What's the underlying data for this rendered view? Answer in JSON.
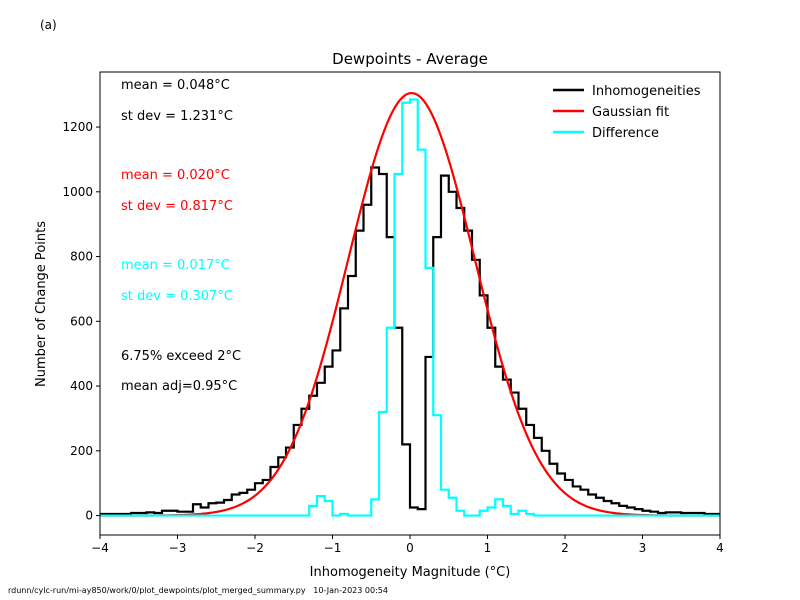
{
  "panel_label": "(a)",
  "footer_text": "rdunn/cylc-run/mi-ay850/work/0/plot_dewpoints/plot_merged_summary.py   10-Jan-2023 00:54",
  "chart_data": {
    "type": "line",
    "title": "Dewpoints - Average",
    "xlabel": "Inhomogeneity Magnitude (°C)",
    "ylabel": "Number of Change Points",
    "xlim": [
      -4,
      4
    ],
    "ylim": [
      -60,
      1370
    ],
    "xticks": [
      -4,
      -3,
      -2,
      -1,
      0,
      1,
      2,
      3,
      4
    ],
    "xtick_labels": [
      "−4",
      "−3",
      "−2",
      "−1",
      "0",
      "1",
      "2",
      "3",
      "4"
    ],
    "yticks": [
      0,
      200,
      400,
      600,
      800,
      1000,
      1200
    ],
    "ytick_labels": [
      "0",
      "200",
      "400",
      "600",
      "800",
      "1000",
      "1200"
    ],
    "legend_position": "top-right",
    "colors": {
      "inhomogeneities": "#000000",
      "gaussian": "#ff0000",
      "difference": "#00ffff"
    },
    "series": [
      {
        "name": "Inhomogeneities",
        "kind": "step",
        "color": "#000000",
        "edges": [
          -4.0,
          -3.9,
          -3.8,
          -3.7,
          -3.6,
          -3.5,
          -3.4,
          -3.3,
          -3.2,
          -3.1,
          -3.0,
          -2.9,
          -2.8,
          -2.7,
          -2.6,
          -2.5,
          -2.4,
          -2.3,
          -2.2,
          -2.1,
          -2.0,
          -1.9,
          -1.8,
          -1.7,
          -1.6,
          -1.5,
          -1.4,
          -1.3,
          -1.2,
          -1.1,
          -1.0,
          -0.9,
          -0.8,
          -0.7,
          -0.6,
          -0.5,
          -0.4,
          -0.3,
          -0.2,
          -0.1,
          0.0,
          0.1,
          0.2,
          0.3,
          0.4,
          0.5,
          0.6,
          0.7,
          0.8,
          0.9,
          1.0,
          1.1,
          1.2,
          1.3,
          1.4,
          1.5,
          1.6,
          1.7,
          1.8,
          1.9,
          2.0,
          2.1,
          2.2,
          2.3,
          2.4,
          2.5,
          2.6,
          2.7,
          2.8,
          2.9,
          3.0,
          3.1,
          3.2,
          3.3,
          3.4,
          3.5,
          3.6,
          3.7,
          3.8,
          3.9,
          4.0
        ],
        "values": [
          5,
          5,
          5,
          5,
          8,
          8,
          10,
          8,
          15,
          15,
          12,
          12,
          35,
          25,
          38,
          40,
          48,
          65,
          70,
          80,
          100,
          110,
          150,
          180,
          210,
          280,
          330,
          370,
          410,
          460,
          510,
          640,
          740,
          880,
          960,
          1075,
          1055,
          860,
          580,
          220,
          25,
          20,
          490,
          860,
          1050,
          1000,
          950,
          880,
          790,
          680,
          580,
          460,
          420,
          380,
          330,
          280,
          240,
          200,
          160,
          130,
          110,
          90,
          80,
          65,
          55,
          45,
          38,
          30,
          25,
          20,
          15,
          12,
          8,
          10,
          10,
          8,
          8,
          8,
          5,
          5
        ]
      },
      {
        "name": "Gaussian fit",
        "kind": "gaussian",
        "color": "#ff0000",
        "amplitude": 1305,
        "mean": 0.02,
        "stdev": 0.817
      },
      {
        "name": "Difference",
        "kind": "step",
        "color": "#00ffff",
        "edges": [
          -4.0,
          -1.3,
          -1.2,
          -1.1,
          -1.0,
          -0.9,
          -0.8,
          -0.7,
          -0.6,
          -0.5,
          -0.4,
          -0.3,
          -0.2,
          -0.1,
          0.0,
          0.1,
          0.2,
          0.3,
          0.4,
          0.5,
          0.6,
          0.7,
          0.8,
          0.9,
          1.0,
          1.1,
          1.2,
          1.3,
          1.4,
          1.5,
          1.6,
          4.0
        ],
        "values": [
          0,
          30,
          60,
          45,
          0,
          5,
          0,
          0,
          0,
          50,
          320,
          580,
          1055,
          1275,
          1285,
          1130,
          765,
          310,
          80,
          55,
          15,
          0,
          0,
          15,
          25,
          50,
          30,
          5,
          15,
          5,
          0
        ]
      }
    ],
    "annotations": [
      {
        "text": "mean =  0.048°C",
        "color": "#000000"
      },
      {
        "text": "st dev =  1.231°C",
        "color": "#000000"
      },
      {
        "text": "mean =  0.020°C",
        "color": "#ff0000"
      },
      {
        "text": "st dev =  0.817°C",
        "color": "#ff0000"
      },
      {
        "text": "mean =  0.017°C",
        "color": "#00ffff"
      },
      {
        "text": "st dev =  0.307°C",
        "color": "#00ffff"
      },
      {
        "text": "6.75% exceed 2°C",
        "color": "#000000"
      },
      {
        "text": "mean adj=0.95°C",
        "color": "#000000"
      }
    ]
  }
}
